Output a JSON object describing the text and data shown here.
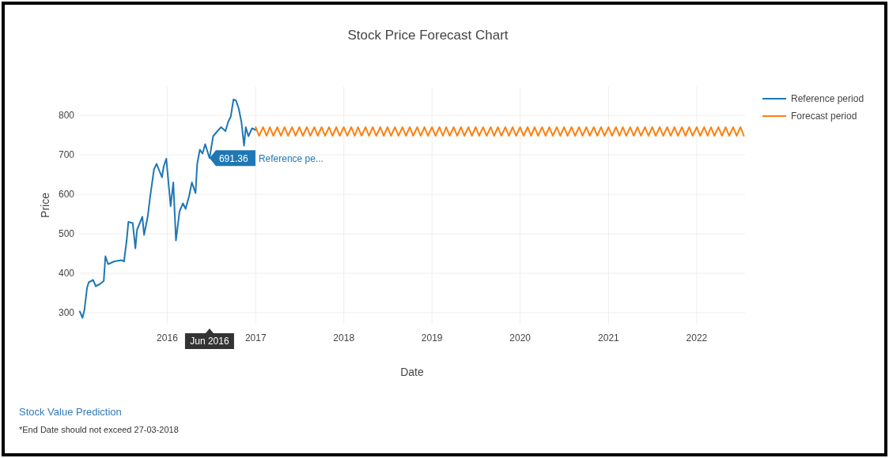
{
  "chart_data": {
    "type": "line",
    "title": "Stock Price Forecast Chart",
    "xlabel": "Date",
    "ylabel": "Price",
    "xlim": [
      "2015-01-01",
      "2022-07-20"
    ],
    "xticks": [
      {
        "value": "2016-01-01",
        "label": "2016"
      },
      {
        "value": "2017-01-01",
        "label": "2017"
      },
      {
        "value": "2018-01-01",
        "label": "2018"
      },
      {
        "value": "2019-01-01",
        "label": "2019"
      },
      {
        "value": "2020-01-01",
        "label": "2020"
      },
      {
        "value": "2021-01-01",
        "label": "2021"
      },
      {
        "value": "2022-01-01",
        "label": "2022"
      }
    ],
    "ylim": [
      272,
      872
    ],
    "yticks": [
      300,
      400,
      500,
      600,
      700,
      800
    ],
    "grid": true,
    "legend": "top right",
    "series": [
      {
        "name": "Reference period",
        "color": "#1f77b4",
        "x": [
          "2015-01-04",
          "2015-01-15",
          "2015-01-23",
          "2015-02-03",
          "2015-02-10",
          "2015-02-28",
          "2015-03-11",
          "2015-03-29",
          "2015-04-13",
          "2015-04-20",
          "2015-05-01",
          "2015-05-27",
          "2015-06-25",
          "2015-07-06",
          "2015-07-17",
          "2015-07-24",
          "2015-08-11",
          "2015-08-22",
          "2015-08-29",
          "2015-09-20",
          "2015-09-27",
          "2015-10-12",
          "2015-10-23",
          "2015-11-07",
          "2015-11-18",
          "2015-12-10",
          "2015-12-17",
          "2015-12-28",
          "2016-01-08",
          "2016-01-15",
          "2016-01-26",
          "2016-02-06",
          "2016-02-21",
          "2016-03-06",
          "2016-03-17",
          "2016-04-01",
          "2016-04-12",
          "2016-04-27",
          "2016-05-04",
          "2016-05-15",
          "2016-05-26",
          "2016-06-06",
          "2016-06-24",
          "2016-07-09",
          "2016-07-27",
          "2016-08-11",
          "2016-08-29",
          "2016-09-09",
          "2016-09-20",
          "2016-10-01",
          "2016-10-12",
          "2016-10-23",
          "2016-11-03",
          "2016-11-14",
          "2016-11-21",
          "2016-12-02",
          "2016-12-17",
          "2017-01-01"
        ],
        "values": [
          303,
          287,
          307,
          363,
          377,
          383,
          367,
          373,
          380,
          443,
          423,
          430,
          433,
          430,
          483,
          530,
          527,
          463,
          510,
          543,
          497,
          543,
          597,
          663,
          677,
          643,
          670,
          690,
          617,
          570,
          630,
          483,
          557,
          577,
          563,
          597,
          630,
          603,
          677,
          713,
          703,
          727,
          691.36,
          747,
          760,
          770,
          760,
          783,
          797,
          840,
          837,
          817,
          783,
          723,
          770,
          747,
          767,
          763
        ]
      },
      {
        "name": "Forecast period",
        "color": "#ff7f0e",
        "x": [
          "2017-01-01",
          "2017-01-15",
          "2017-02-01",
          "2017-02-15",
          "2017-03-01",
          "2017-03-15",
          "2017-04-01",
          "2017-04-15",
          "2017-05-01",
          "2017-05-15",
          "2017-06-01",
          "2017-06-15",
          "2017-07-01",
          "2017-07-15",
          "2017-08-01",
          "2017-08-15",
          "2017-09-01",
          "2017-09-15",
          "2017-10-01",
          "2017-10-15",
          "2017-11-01",
          "2017-11-15",
          "2017-12-01",
          "2017-12-15",
          "2018-01-01",
          "2018-01-15",
          "2018-02-01",
          "2018-02-15",
          "2018-03-01",
          "2018-03-15",
          "2018-04-01",
          "2018-04-15",
          "2018-05-01",
          "2018-05-15",
          "2018-06-01",
          "2018-06-15",
          "2018-07-01",
          "2018-07-15",
          "2018-08-01",
          "2018-08-15",
          "2018-09-01",
          "2018-09-15",
          "2018-10-01",
          "2018-10-15",
          "2018-11-01",
          "2018-11-15",
          "2018-12-01",
          "2018-12-15",
          "2019-01-01",
          "2019-01-15",
          "2019-02-01",
          "2019-02-15",
          "2019-03-01",
          "2019-03-15",
          "2019-04-01",
          "2019-04-15",
          "2019-05-01",
          "2019-05-15",
          "2019-06-01",
          "2019-06-15",
          "2019-07-01",
          "2019-07-15",
          "2019-08-01",
          "2019-08-15",
          "2019-09-01",
          "2019-09-15",
          "2019-10-01",
          "2019-10-15",
          "2019-11-01",
          "2019-11-15",
          "2019-12-01",
          "2019-12-15",
          "2020-01-01",
          "2020-01-15",
          "2020-02-01",
          "2020-02-15",
          "2020-03-01",
          "2020-03-15",
          "2020-04-01",
          "2020-04-15",
          "2020-05-01",
          "2020-05-15",
          "2020-06-01",
          "2020-06-15",
          "2020-07-01",
          "2020-07-15",
          "2020-08-01",
          "2020-08-15",
          "2020-09-01",
          "2020-09-15",
          "2020-10-01",
          "2020-10-15",
          "2020-11-01",
          "2020-11-15",
          "2020-12-01",
          "2020-12-15",
          "2021-01-01",
          "2021-01-15",
          "2021-02-01",
          "2021-02-15",
          "2021-03-01",
          "2021-03-15",
          "2021-04-01",
          "2021-04-15",
          "2021-05-01",
          "2021-05-15",
          "2021-06-01",
          "2021-06-15",
          "2021-07-01",
          "2021-07-15",
          "2021-08-01",
          "2021-08-15",
          "2021-09-01",
          "2021-09-15",
          "2021-10-01",
          "2021-10-15",
          "2021-11-01",
          "2021-11-15",
          "2021-12-01",
          "2021-12-15",
          "2022-01-01",
          "2022-01-15",
          "2022-02-01",
          "2022-02-15",
          "2022-03-01",
          "2022-03-15",
          "2022-04-01",
          "2022-04-15",
          "2022-05-01",
          "2022-05-15",
          "2022-06-01",
          "2022-06-15",
          "2022-07-01",
          "2022-07-15"
        ],
        "values": [
          770,
          748,
          770,
          748,
          770,
          748,
          770,
          748,
          770,
          748,
          770,
          748,
          770,
          748,
          770,
          748,
          770,
          748,
          770,
          748,
          770,
          748,
          770,
          748,
          770,
          748,
          770,
          748,
          770,
          748,
          770,
          748,
          770,
          748,
          770,
          748,
          770,
          748,
          770,
          748,
          770,
          748,
          770,
          748,
          770,
          748,
          770,
          748,
          770,
          748,
          770,
          748,
          770,
          748,
          770,
          748,
          770,
          748,
          770,
          748,
          770,
          748,
          770,
          748,
          770,
          748,
          770,
          748,
          770,
          748,
          770,
          748,
          770,
          748,
          770,
          748,
          770,
          748,
          770,
          748,
          770,
          748,
          770,
          748,
          770,
          748,
          770,
          748,
          770,
          748,
          770,
          748,
          770,
          748,
          770,
          748,
          770,
          748,
          770,
          748,
          770,
          748,
          770,
          748,
          770,
          748,
          770,
          748,
          770,
          748,
          770,
          748,
          770,
          748,
          770,
          748,
          770,
          748,
          770,
          748,
          770,
          748,
          770,
          748,
          770,
          748,
          770,
          748,
          770,
          748,
          770,
          748,
          770,
          748
        ]
      }
    ],
    "annotations": [
      {
        "text": "691.36 Reference pe...",
        "x": "2016-06-24",
        "y": 691.36
      },
      "Jun 2016",
      "Stock Value Prediction",
      "*End Date should not exceed 27-03-2018"
    ]
  }
}
